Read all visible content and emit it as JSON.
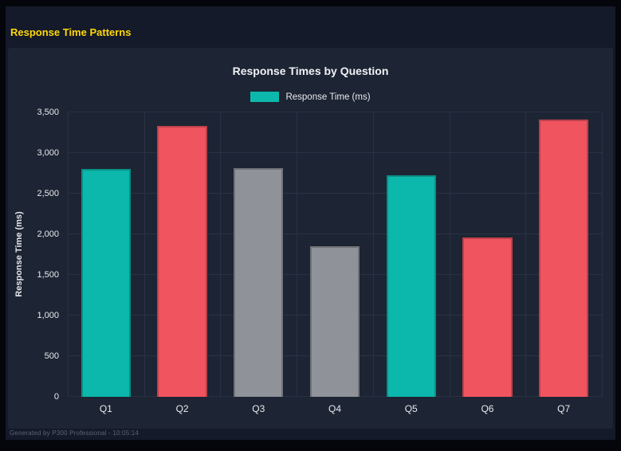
{
  "header": {
    "title": "Response Time Patterns"
  },
  "footer": {
    "text": "Generated by P300 Professional - 10:05:14"
  },
  "colors": {
    "accent_yellow": "#ffd60a",
    "panel_background": "#1d2433",
    "page_background": "#141a29",
    "gridline": "#2a3145",
    "teal": "#0cb8ab",
    "red": "#f0545f",
    "gray": "#8f9298"
  },
  "chart_data": {
    "type": "bar",
    "title": "Response Times by Question",
    "legend": [
      {
        "label": "Response Time (ms)",
        "color": "#0cb8ab"
      }
    ],
    "legend_position": "top",
    "categories": [
      "Q1",
      "Q2",
      "Q3",
      "Q4",
      "Q5",
      "Q6",
      "Q7"
    ],
    "values": [
      2800,
      3330,
      2810,
      1850,
      2730,
      1960,
      3410
    ],
    "bar_colors": [
      "#0cb8ab",
      "#f0545f",
      "#8f9298",
      "#8f9298",
      "#0cb8ab",
      "#f0545f",
      "#f0545f"
    ],
    "xlabel": "",
    "ylabel": "Response Time (ms)",
    "ylim": [
      0,
      3500
    ],
    "ytick_step": 500,
    "grid": true
  }
}
